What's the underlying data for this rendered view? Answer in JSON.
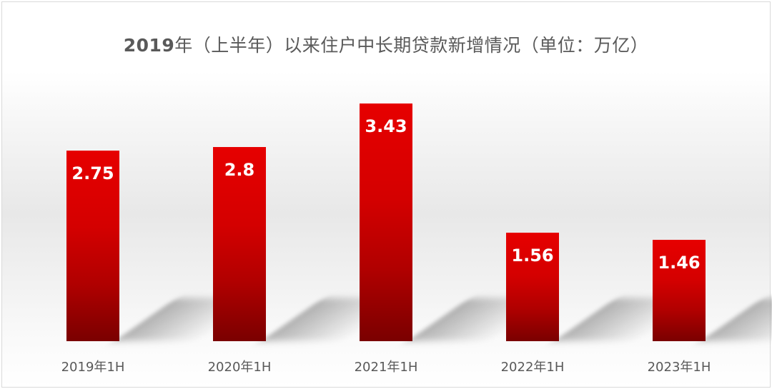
{
  "title": {
    "year": "2019",
    "rest": "年（上半年）以来住户中长期贷款新增情况（单位：万亿）"
  },
  "colors": {
    "bar_top": "#e60000",
    "bar_bottom": "#7a0000",
    "label": "#ffffff",
    "text": "#595959"
  },
  "chart_data": {
    "type": "bar",
    "title": "2019年（上半年）以来住户中长期贷款新增情况（单位：万亿）",
    "categories": [
      "2019年1H",
      "2020年1H",
      "2021年1H",
      "2022年1H",
      "2023年1H"
    ],
    "values": [
      2.75,
      2.8,
      3.43,
      1.56,
      1.46
    ],
    "value_labels": [
      "2.75",
      "2.8",
      "3.43",
      "1.56",
      "1.46"
    ],
    "xlabel": "",
    "ylabel": "",
    "unit": "万亿",
    "ylim": [
      0,
      3.5
    ],
    "grid": false,
    "legend": "none"
  }
}
